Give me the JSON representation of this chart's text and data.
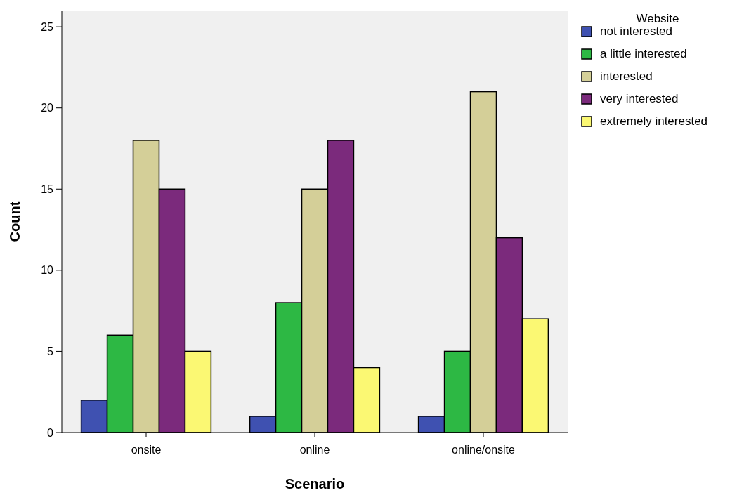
{
  "chart_data": {
    "type": "bar",
    "xlabel": "Scenario",
    "ylabel": "Count",
    "legend_title": "Website",
    "categories": [
      "onsite",
      "online",
      "online/onsite"
    ],
    "series": [
      {
        "name": "not interested",
        "color": "#3f51b1",
        "values": [
          2,
          1,
          1
        ]
      },
      {
        "name": "a little interested",
        "color": "#2db844",
        "values": [
          6,
          8,
          5
        ]
      },
      {
        "name": "interested",
        "color": "#d4cf98",
        "values": [
          18,
          15,
          21
        ]
      },
      {
        "name": "very interested",
        "color": "#7b2a7c",
        "values": [
          15,
          18,
          12
        ]
      },
      {
        "name": "extremely interested",
        "color": "#fbf873",
        "values": [
          5,
          4,
          7
        ]
      }
    ],
    "ylim": [
      0,
      26
    ],
    "yticks": [
      0,
      5,
      10,
      15,
      20,
      25
    ],
    "grid": false,
    "legend": "top right"
  }
}
